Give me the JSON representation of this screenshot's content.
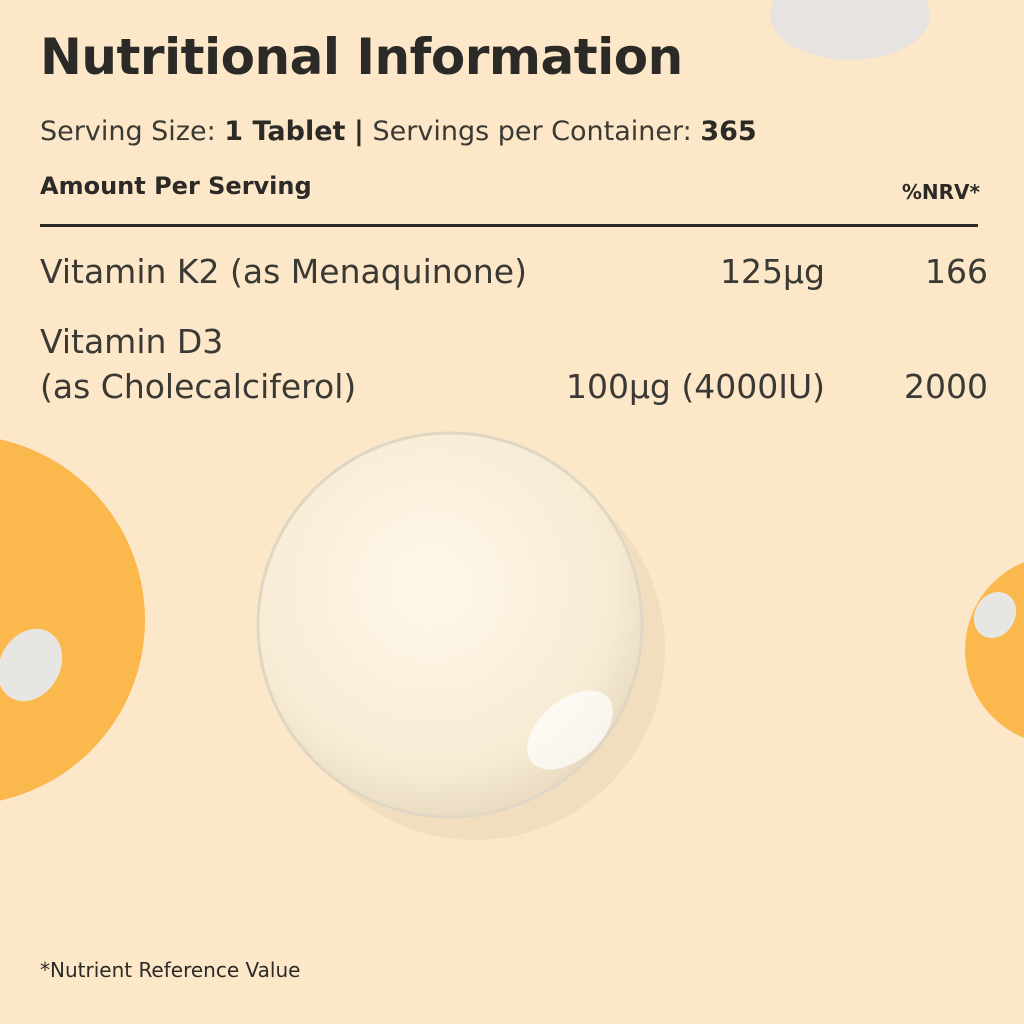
{
  "header": {
    "title": "Nutritional Information"
  },
  "serving": {
    "size_label": "Serving Size:",
    "size": "1 Tablet",
    "separator": "|",
    "per_container_label": "Servings per Container:",
    "per_container": "365"
  },
  "table": {
    "columns": [
      "Amount Per Serving",
      "%NRV*"
    ],
    "rows": [
      {
        "name_lines": [
          "Vitamin K2 (as Menaquinone)"
        ],
        "amount": "125µg",
        "nrv": "166"
      },
      {
        "name_lines": [
          "Vitamin D3",
          "(as Cholecalciferol)"
        ],
        "amount": "100µg (4000IU)",
        "nrv": "2000"
      }
    ]
  },
  "footnote": "*Nutrient Reference Value"
}
